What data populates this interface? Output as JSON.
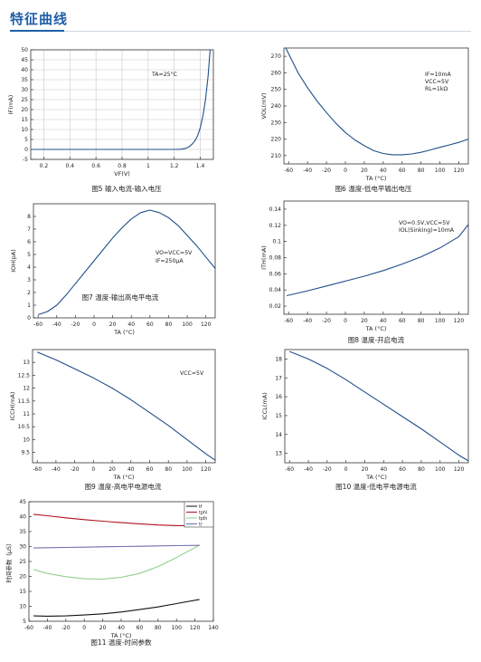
{
  "header": {
    "title": "特征曲线"
  },
  "chart_data": [
    {
      "id": "fig5",
      "type": "line",
      "caption": "图5 输入电流-输入电压",
      "xlabel": "VF(V)",
      "ylabel": "IF(mA)",
      "xlim": [
        0.1,
        1.5
      ],
      "ylim": [
        -5,
        50
      ],
      "xticks": [
        0.2,
        0.4,
        0.6,
        0.8,
        1,
        1.2,
        1.4
      ],
      "yticks": [
        -5,
        0,
        5,
        10,
        15,
        20,
        25,
        30,
        35,
        40,
        45,
        50
      ],
      "grid": true,
      "annotations": [
        "TA=25°C"
      ],
      "series": [
        {
          "color": "#1f4f8a",
          "x": [
            0.1,
            1.2,
            1.25,
            1.28,
            1.31,
            1.34,
            1.36,
            1.38,
            1.4,
            1.42,
            1.44,
            1.46,
            1.475
          ],
          "y": [
            0,
            0,
            0.1,
            0.4,
            1.2,
            2.8,
            4.5,
            7,
            11,
            17,
            25,
            37,
            50
          ]
        }
      ]
    },
    {
      "id": "fig6",
      "type": "line",
      "caption": "图6 温度-低电平输出电压",
      "xlabel": "TA  (°C)",
      "ylabel": "VOL(mV)",
      "xlim": [
        -65,
        130
      ],
      "ylim": [
        205,
        275
      ],
      "xticks": [
        -60,
        -40,
        -20,
        0,
        20,
        40,
        60,
        80,
        100,
        120
      ],
      "yticks": [
        210,
        220,
        230,
        240,
        250,
        260,
        270
      ],
      "grid": false,
      "annotations": [
        "IF=10mA",
        "VCC=5V",
        "RL=1kΩ"
      ],
      "series": [
        {
          "color": "#1f4f8a",
          "x": [
            -63,
            -50,
            -40,
            -30,
            -20,
            -10,
            0,
            10,
            20,
            30,
            40,
            50,
            60,
            70,
            80,
            90,
            100,
            110,
            120,
            130
          ],
          "y": [
            275,
            260,
            251,
            243,
            236,
            229.5,
            224,
            219.5,
            216,
            213,
            211.3,
            210.5,
            210.5,
            211,
            212,
            213.5,
            215,
            216.5,
            218,
            220
          ]
        }
      ]
    },
    {
      "id": "fig7",
      "type": "line",
      "caption": "图7 温度-输出高电平电流",
      "xlabel": "TA  (°C)",
      "ylabel": "IOH(pA)",
      "xlim": [
        -65,
        130
      ],
      "ylim": [
        0,
        9
      ],
      "xticks": [
        -60,
        -40,
        -20,
        0,
        20,
        40,
        60,
        80,
        100,
        120
      ],
      "yticks": [
        0,
        1,
        2,
        3,
        4,
        5,
        6,
        7,
        8
      ],
      "grid": false,
      "annotations": [
        "VO=VCC=5V",
        "IF=250μA"
      ],
      "series": [
        {
          "color": "#1f4f8a",
          "x": [
            -60,
            -50,
            -40,
            -30,
            -20,
            -10,
            0,
            10,
            20,
            30,
            40,
            50,
            60,
            70,
            80,
            90,
            100,
            110,
            120,
            130
          ],
          "y": [
            0.25,
            0.5,
            1.0,
            1.8,
            2.7,
            3.6,
            4.5,
            5.4,
            6.3,
            7.1,
            7.8,
            8.3,
            8.5,
            8.3,
            7.9,
            7.3,
            6.5,
            5.7,
            4.8,
            3.9
          ]
        }
      ]
    },
    {
      "id": "fig8",
      "type": "line",
      "caption": "图8 温度-开启电流",
      "xlabel": "TA  (°C)",
      "ylabel": "ITH(mA)",
      "xlim": [
        -65,
        130
      ],
      "ylim": [
        0.01,
        0.15
      ],
      "xticks": [
        -60,
        -40,
        -20,
        0,
        20,
        40,
        60,
        80,
        100,
        120
      ],
      "yticks": [
        0.02,
        0.04,
        0.06,
        0.08,
        0.1,
        0.12,
        0.14
      ],
      "grid": false,
      "annotations": [
        "VO=0.5V,VCC=5V",
        "IOL(Sinking)=10mA"
      ],
      "series": [
        {
          "color": "#1f4f8a",
          "x": [
            -62,
            -40,
            -20,
            0,
            20,
            40,
            60,
            80,
            100,
            120,
            130
          ],
          "y": [
            0.033,
            0.039,
            0.045,
            0.051,
            0.057,
            0.064,
            0.072,
            0.081,
            0.092,
            0.106,
            0.121
          ]
        }
      ]
    },
    {
      "id": "fig9",
      "type": "line",
      "caption": "图9 温度-高电平电源电流",
      "xlabel": "TA  (°C)",
      "ylabel": "ICCH(mA)",
      "xlim": [
        -65,
        130
      ],
      "ylim": [
        9.1,
        13.5
      ],
      "xticks": [
        -60,
        -40,
        -20,
        0,
        20,
        40,
        60,
        80,
        100,
        120
      ],
      "yticks": [
        9.5,
        10,
        10.5,
        11,
        11.5,
        12,
        12.5,
        13
      ],
      "grid": false,
      "annotations": [
        "VCC=5V"
      ],
      "series": [
        {
          "color": "#1f4f8a",
          "x": [
            -60,
            -40,
            -20,
            0,
            20,
            40,
            60,
            80,
            100,
            120,
            130
          ],
          "y": [
            13.4,
            13.1,
            12.75,
            12.4,
            12.0,
            11.55,
            11.05,
            10.55,
            10.0,
            9.45,
            9.2
          ]
        }
      ]
    },
    {
      "id": "fig10",
      "type": "line",
      "caption": "图10 温度-低电平电源电流",
      "xlabel": "TA  (°C)",
      "ylabel": "ICCL(mA)",
      "xlim": [
        -65,
        130
      ],
      "ylim": [
        12.5,
        18.5
      ],
      "xticks": [
        -60,
        -40,
        -20,
        0,
        20,
        40,
        60,
        80,
        100,
        120
      ],
      "yticks": [
        13,
        14,
        15,
        16,
        17,
        18
      ],
      "grid": false,
      "annotations": [],
      "series": [
        {
          "color": "#1f4f8a",
          "x": [
            -60,
            -40,
            -20,
            0,
            20,
            40,
            60,
            80,
            100,
            120,
            130
          ],
          "y": [
            18.4,
            18.0,
            17.5,
            16.9,
            16.25,
            15.6,
            14.95,
            14.3,
            13.6,
            12.9,
            12.6
          ]
        }
      ]
    },
    {
      "id": "fig11",
      "type": "line",
      "caption": "图11 温度-时间参数",
      "xlabel": "TA  (°C)",
      "ylabel": "时间参数（μS）",
      "xlim": [
        -60,
        140
      ],
      "ylim": [
        5,
        45
      ],
      "xticks": [
        -60,
        -40,
        -20,
        0,
        20,
        40,
        60,
        80,
        100,
        120,
        140
      ],
      "yticks": [
        5,
        10,
        15,
        20,
        25,
        30,
        35,
        40,
        45
      ],
      "grid": false,
      "legend": "top-right",
      "annotations": [],
      "series": [
        {
          "name": "tf",
          "color": "#111111",
          "x": [
            -55,
            -40,
            -20,
            0,
            20,
            40,
            60,
            80,
            100,
            125
          ],
          "y": [
            6.8,
            6.7,
            6.8,
            7.1,
            7.5,
            8.1,
            8.9,
            9.8,
            10.9,
            12.3
          ]
        },
        {
          "name": "tphl",
          "color": "#b01020",
          "x": [
            -55,
            -40,
            -20,
            0,
            20,
            40,
            60,
            80,
            100,
            125
          ],
          "y": [
            40.8,
            40.3,
            39.6,
            39.0,
            38.5,
            38.0,
            37.6,
            37.2,
            37.0,
            37.0
          ]
        },
        {
          "name": "tplh",
          "color": "#8fcf8f",
          "x": [
            -55,
            -40,
            -20,
            0,
            20,
            40,
            60,
            80,
            100,
            125
          ],
          "y": [
            22.3,
            21.0,
            19.9,
            19.2,
            19.1,
            19.7,
            21.0,
            23.3,
            26.3,
            30.5
          ]
        },
        {
          "name": "tr",
          "color": "#7070b0",
          "x": [
            -55,
            -40,
            -20,
            0,
            20,
            40,
            60,
            80,
            100,
            125
          ],
          "y": [
            29.5,
            29.6,
            29.7,
            29.8,
            29.9,
            30.0,
            30.1,
            30.2,
            30.3,
            30.4
          ]
        }
      ]
    }
  ]
}
